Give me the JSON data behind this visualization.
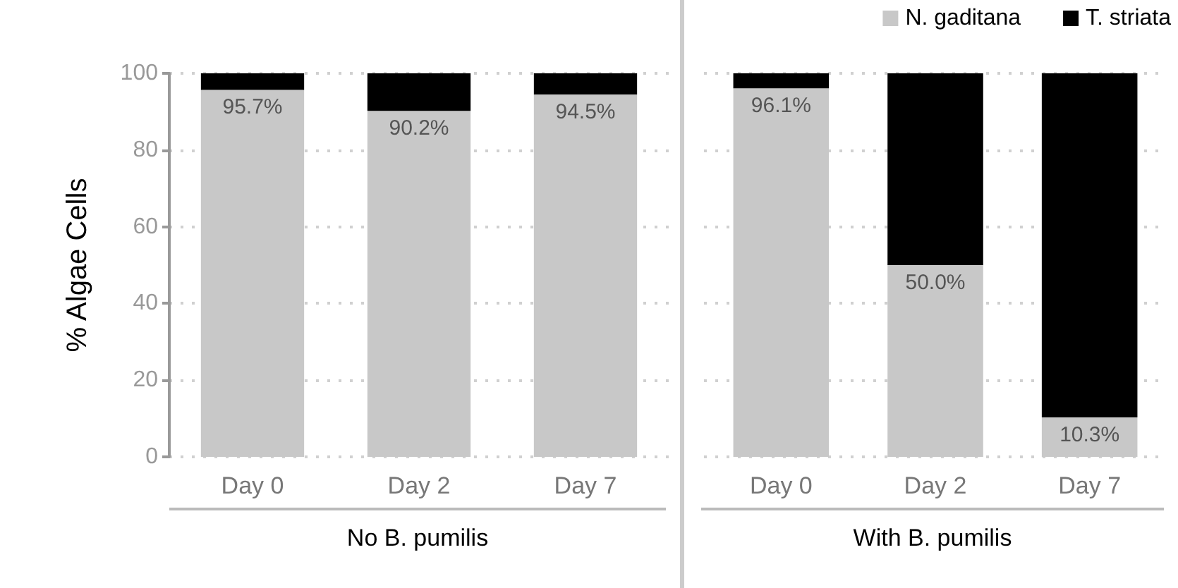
{
  "chart_data": [
    {
      "type": "bar",
      "stacked": true,
      "ylabel": "% Algae Cells",
      "xlabel": "No B. pumilis",
      "categories": [
        "Day 0",
        "Day 2",
        "Day 7"
      ],
      "ylim": [
        0,
        100
      ],
      "yticks": [
        0,
        20,
        40,
        60,
        80,
        100
      ],
      "grid": "y",
      "series": [
        {
          "color": "#c8c8c8",
          "values": [
            95.7,
            90.2,
            94.5
          ],
          "value_labels": [
            "95.7%",
            "90.2%",
            "94.5%"
          ]
        },
        {
          "color": "#000000",
          "values": [
            4.3,
            9.8,
            5.5
          ]
        }
      ]
    },
    {
      "type": "bar",
      "stacked": true,
      "xlabel": "With B. pumilis",
      "categories": [
        "Day 0",
        "Day 2",
        "Day 7"
      ],
      "ylim": [
        0,
        100
      ],
      "yticks": [
        0,
        20,
        40,
        60,
        80,
        100
      ],
      "grid": "y",
      "tick_labels": "x",
      "legend": "top right",
      "series": [
        {
          "name": "N. gaditana",
          "color": "#c8c8c8",
          "values": [
            96.1,
            50.0,
            10.3
          ],
          "value_labels": [
            "96.1%",
            "50.0%",
            "10.3%"
          ]
        },
        {
          "name": "T. striata",
          "color": "#000000",
          "values": [
            3.9,
            50.0,
            89.7
          ]
        }
      ]
    }
  ]
}
